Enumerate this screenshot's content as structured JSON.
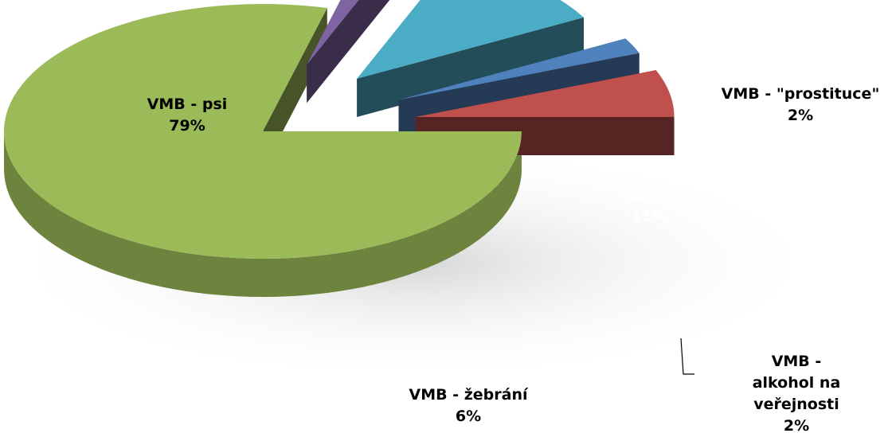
{
  "chart_data": {
    "type": "pie",
    "categories": [
      "VMB - psi",
      "VMB - \"prostituce\"",
      "Zábor VP - prodejní stánky",
      "VMB - alkohol na veřejnosti",
      "VMB  - žebrání"
    ],
    "values": [
      79,
      2,
      11,
      2,
      6
    ],
    "value_labels": [
      "79%",
      "2%",
      "11%",
      "2%",
      "6%"
    ],
    "colors": [
      "#9bbb59",
      "#8064a2",
      "#4bacc6",
      "#4f81bd",
      "#c0504d"
    ]
  }
}
